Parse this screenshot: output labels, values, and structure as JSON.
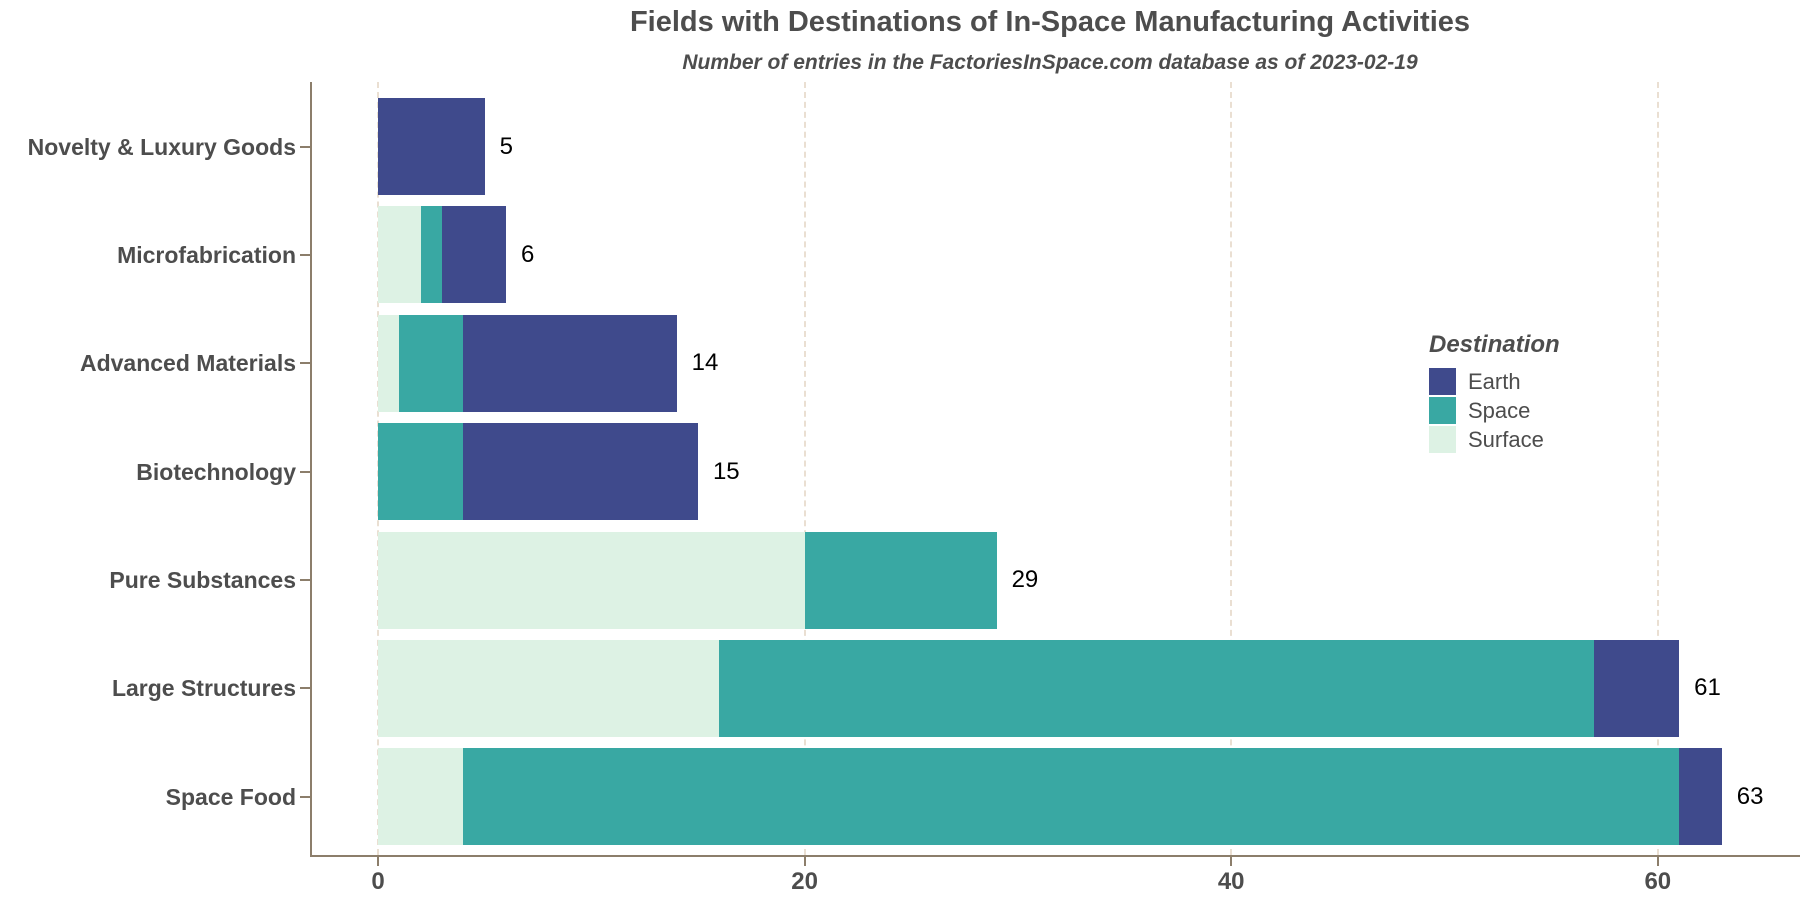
{
  "title": "Fields with Destinations of In-Space Manufacturing Activities",
  "subtitle": "Number of entries in the FactoriesInSpace.com database as of 2023-02-19",
  "legend": {
    "title": "Destination",
    "entries": [
      "Earth",
      "Space",
      "Surface"
    ]
  },
  "colors": {
    "Earth": "#3f4a8c",
    "Space": "#39a8a3",
    "Surface": "#ddf2e4",
    "axis": "#8c7e6b",
    "grid": "#eadfd2",
    "text": "#4d4d4d",
    "value_label": "#000000"
  },
  "chart_data": {
    "type": "bar",
    "orientation": "horizontal",
    "stacked": true,
    "title": "Fields with Destinations of In-Space Manufacturing Activities",
    "subtitle": "Number of entries in the FactoriesInSpace.com database as of 2023-02-19",
    "categories": [
      "Novelty & Luxury Goods",
      "Microfabrication",
      "Advanced Materials",
      "Biotechnology",
      "Pure Substances",
      "Large Structures",
      "Space Food"
    ],
    "series": [
      {
        "name": "Surface",
        "values": [
          0,
          2,
          1,
          0,
          20,
          16,
          4
        ]
      },
      {
        "name": "Space",
        "values": [
          0,
          1,
          3,
          4,
          9,
          41,
          57
        ]
      },
      {
        "name": "Earth",
        "values": [
          5,
          3,
          10,
          11,
          0,
          4,
          2
        ]
      }
    ],
    "totals": [
      5,
      6,
      14,
      15,
      29,
      61,
      63
    ],
    "x_ticks": [
      0,
      20,
      40,
      60
    ],
    "xlim": [
      0,
      66
    ],
    "grid": "dashed-vertical",
    "legend_position": "right-middle"
  }
}
